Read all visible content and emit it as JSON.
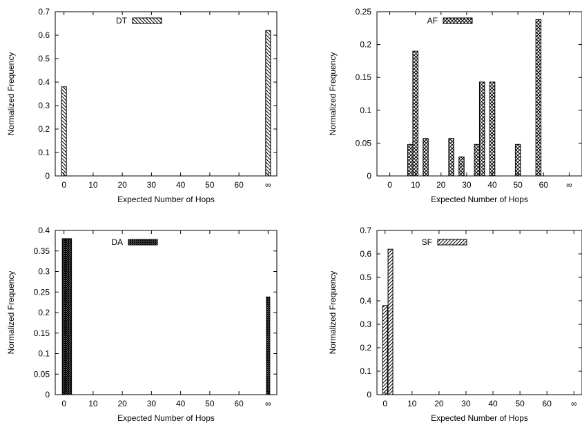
{
  "chart_data": [
    {
      "type": "bar",
      "legend": "DT",
      "legend_position": "top-right",
      "pattern": "diag-back",
      "xlabel": "Expected Number of Hops",
      "ylabel": "Normalized Frequency",
      "xlim": [
        -3,
        73
      ],
      "ylim": [
        0,
        0.7
      ],
      "xticks": [
        0,
        10,
        20,
        30,
        40,
        50,
        60,
        70
      ],
      "xtick_labels": [
        "0",
        "10",
        "20",
        "30",
        "40",
        "50",
        "60",
        "∞"
      ],
      "yticks": [
        0,
        0.1,
        0.2,
        0.3,
        0.4,
        0.5,
        0.6,
        0.7
      ],
      "ytick_labels": [
        "0",
        "0.1",
        "0.2",
        "0.3",
        "0.4",
        "0.5",
        "0.6",
        "0.7"
      ],
      "x": [
        0,
        70
      ],
      "values": [
        0.38,
        0.62
      ]
    },
    {
      "type": "bar",
      "legend": "AF",
      "legend_position": "top-right",
      "pattern": "crosshatch",
      "xlabel": "Expected Number of Hops",
      "ylabel": "Normalized Frequency",
      "xlim": [
        -5,
        75
      ],
      "ylim": [
        0,
        0.25
      ],
      "xticks": [
        0,
        10,
        20,
        30,
        40,
        50,
        60,
        70
      ],
      "xtick_labels": [
        "0",
        "10",
        "20",
        "30",
        "40",
        "50",
        "60",
        "∞"
      ],
      "yticks": [
        0,
        0.05,
        0.1,
        0.15,
        0.2,
        0.25
      ],
      "ytick_labels": [
        "0",
        "0.05",
        "0.1",
        "0.15",
        "0.2",
        "0.25"
      ],
      "x": [
        8,
        10,
        14,
        24,
        28,
        34,
        36,
        40,
        50,
        58
      ],
      "values": [
        0.048,
        0.19,
        0.057,
        0.057,
        0.029,
        0.048,
        0.143,
        0.143,
        0.048,
        0.238
      ]
    },
    {
      "type": "bar",
      "legend": "DA",
      "legend_position": "top-right",
      "pattern": "dense",
      "xlabel": "Expected Number of Hops",
      "ylabel": "Normalized Frequency",
      "xlim": [
        -3,
        73
      ],
      "ylim": [
        0,
        0.4
      ],
      "xticks": [
        0,
        10,
        20,
        30,
        40,
        50,
        60,
        70
      ],
      "xtick_labels": [
        "0",
        "10",
        "20",
        "30",
        "40",
        "50",
        "60",
        "∞"
      ],
      "yticks": [
        0,
        0.05,
        0.1,
        0.15,
        0.2,
        0.25,
        0.3,
        0.35,
        0.4
      ],
      "ytick_labels": [
        "0",
        "0.05",
        "0.1",
        "0.15",
        "0.2",
        "0.25",
        "0.3",
        "0.35",
        "0.4"
      ],
      "x": [
        0,
        1,
        2,
        70
      ],
      "values": [
        0.38,
        0.38,
        0.38,
        0.238
      ]
    },
    {
      "type": "bar",
      "legend": "SF",
      "legend_position": "top-right",
      "pattern": "diag-forward",
      "xlabel": "Expected Number of Hops",
      "ylabel": "Normalized Frequency",
      "xlim": [
        -3,
        73
      ],
      "ylim": [
        0,
        0.7
      ],
      "xticks": [
        0,
        10,
        20,
        30,
        40,
        50,
        60,
        70
      ],
      "xtick_labels": [
        "0",
        "10",
        "20",
        "30",
        "40",
        "50",
        "60",
        "∞"
      ],
      "yticks": [
        0,
        0.1,
        0.2,
        0.3,
        0.4,
        0.5,
        0.6,
        0.7
      ],
      "ytick_labels": [
        "0",
        "0.1",
        "0.2",
        "0.3",
        "0.4",
        "0.5",
        "0.6",
        "0.7"
      ],
      "x": [
        0,
        2
      ],
      "values": [
        0.38,
        0.62
      ]
    }
  ]
}
